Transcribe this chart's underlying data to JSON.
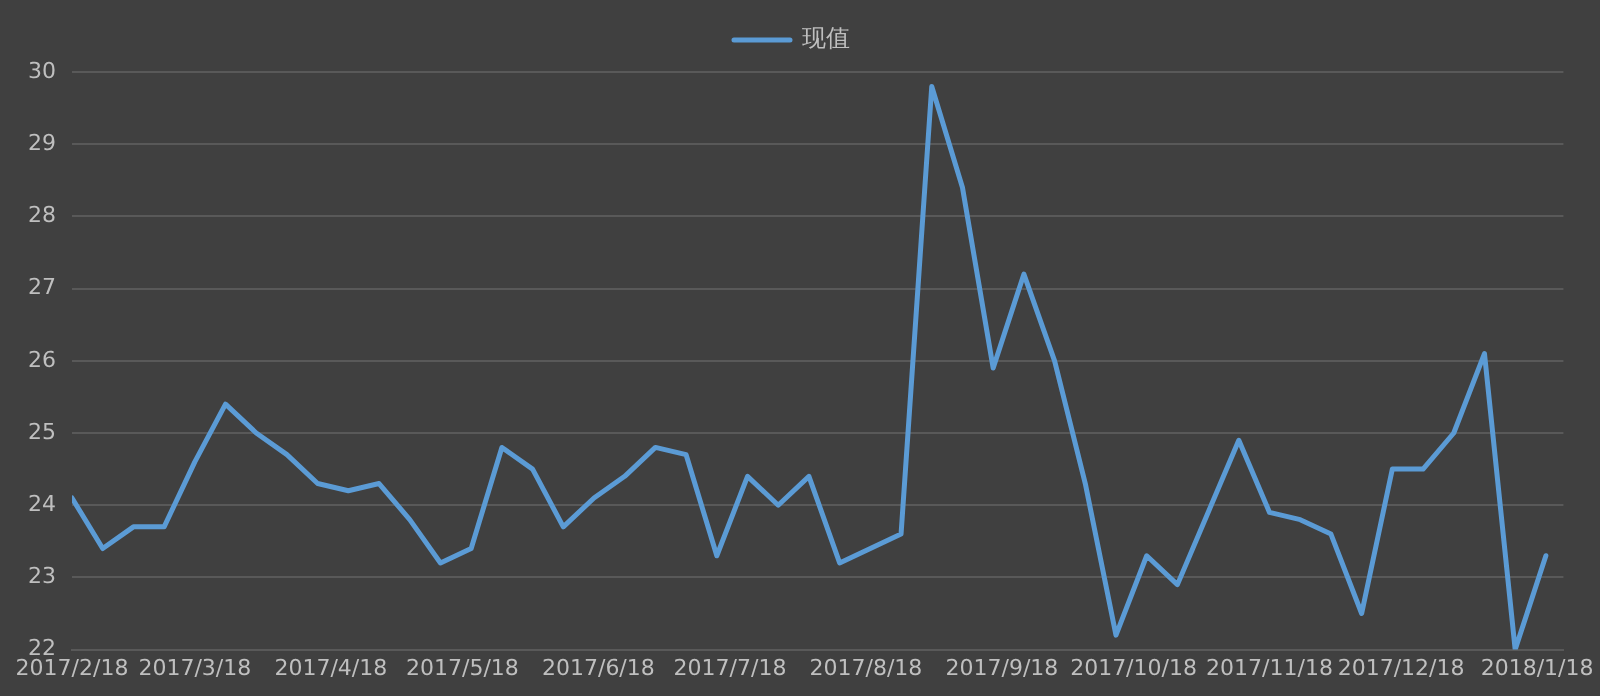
{
  "chart_data": {
    "type": "line",
    "x": [
      "2017-02-18",
      "2017-02-25",
      "2017-03-04",
      "2017-03-11",
      "2017-03-18",
      "2017-03-25",
      "2017-04-01",
      "2017-04-08",
      "2017-04-15",
      "2017-04-22",
      "2017-04-29",
      "2017-05-06",
      "2017-05-13",
      "2017-05-20",
      "2017-05-27",
      "2017-06-03",
      "2017-06-10",
      "2017-06-17",
      "2017-06-24",
      "2017-07-01",
      "2017-07-08",
      "2017-07-15",
      "2017-07-22",
      "2017-07-29",
      "2017-08-05",
      "2017-08-12",
      "2017-08-19",
      "2017-08-26",
      "2017-09-02",
      "2017-09-09",
      "2017-09-16",
      "2017-09-23",
      "2017-09-30",
      "2017-10-07",
      "2017-10-14",
      "2017-10-21",
      "2017-10-28",
      "2017-11-04",
      "2017-11-11",
      "2017-11-18",
      "2017-11-25",
      "2017-12-02",
      "2017-12-09",
      "2017-12-16",
      "2017-12-23",
      "2017-12-30",
      "2018-01-06",
      "2018-01-13",
      "2018-01-20"
    ],
    "series": [
      {
        "name": "现值",
        "color": "#5b9bd5",
        "values": [
          24.1,
          23.4,
          23.7,
          23.7,
          24.6,
          25.4,
          25.0,
          24.7,
          24.3,
          24.2,
          24.3,
          23.8,
          23.2,
          23.4,
          24.8,
          24.5,
          23.7,
          24.1,
          24.4,
          24.8,
          24.7,
          23.3,
          24.4,
          24.0,
          24.4,
          23.2,
          23.4,
          23.6,
          29.8,
          28.4,
          25.9,
          27.2,
          26.0,
          24.3,
          22.2,
          23.3,
          22.9,
          23.9,
          24.9,
          23.9,
          23.8,
          23.6,
          22.5,
          24.5,
          24.5,
          25.0,
          26.1,
          22.0,
          23.3
        ]
      }
    ],
    "xlim": [
      "2017-02-18",
      "2018-01-24"
    ],
    "xticks": [
      {
        "value": "2017-02-18",
        "label": "2017/2/18"
      },
      {
        "value": "2017-03-18",
        "label": "2017/3/18"
      },
      {
        "value": "2017-04-18",
        "label": "2017/4/18"
      },
      {
        "value": "2017-05-18",
        "label": "2017/5/18"
      },
      {
        "value": "2017-06-18",
        "label": "2017/6/18"
      },
      {
        "value": "2017-07-18",
        "label": "2017/7/18"
      },
      {
        "value": "2017-08-18",
        "label": "2017/8/18"
      },
      {
        "value": "2017-09-18",
        "label": "2017/9/18"
      },
      {
        "value": "2017-10-18",
        "label": "2017/10/18"
      },
      {
        "value": "2017-11-18",
        "label": "2017/11/18"
      },
      {
        "value": "2017-12-18",
        "label": "2017/12/18"
      },
      {
        "value": "2018-01-18",
        "label": "2018/1/18"
      }
    ],
    "ylim": [
      22,
      30
    ],
    "yticks": [
      22,
      23,
      24,
      25,
      26,
      27,
      28,
      29,
      30
    ],
    "grid": "y",
    "legend": "top",
    "marker": "none",
    "line_style": "solid"
  }
}
